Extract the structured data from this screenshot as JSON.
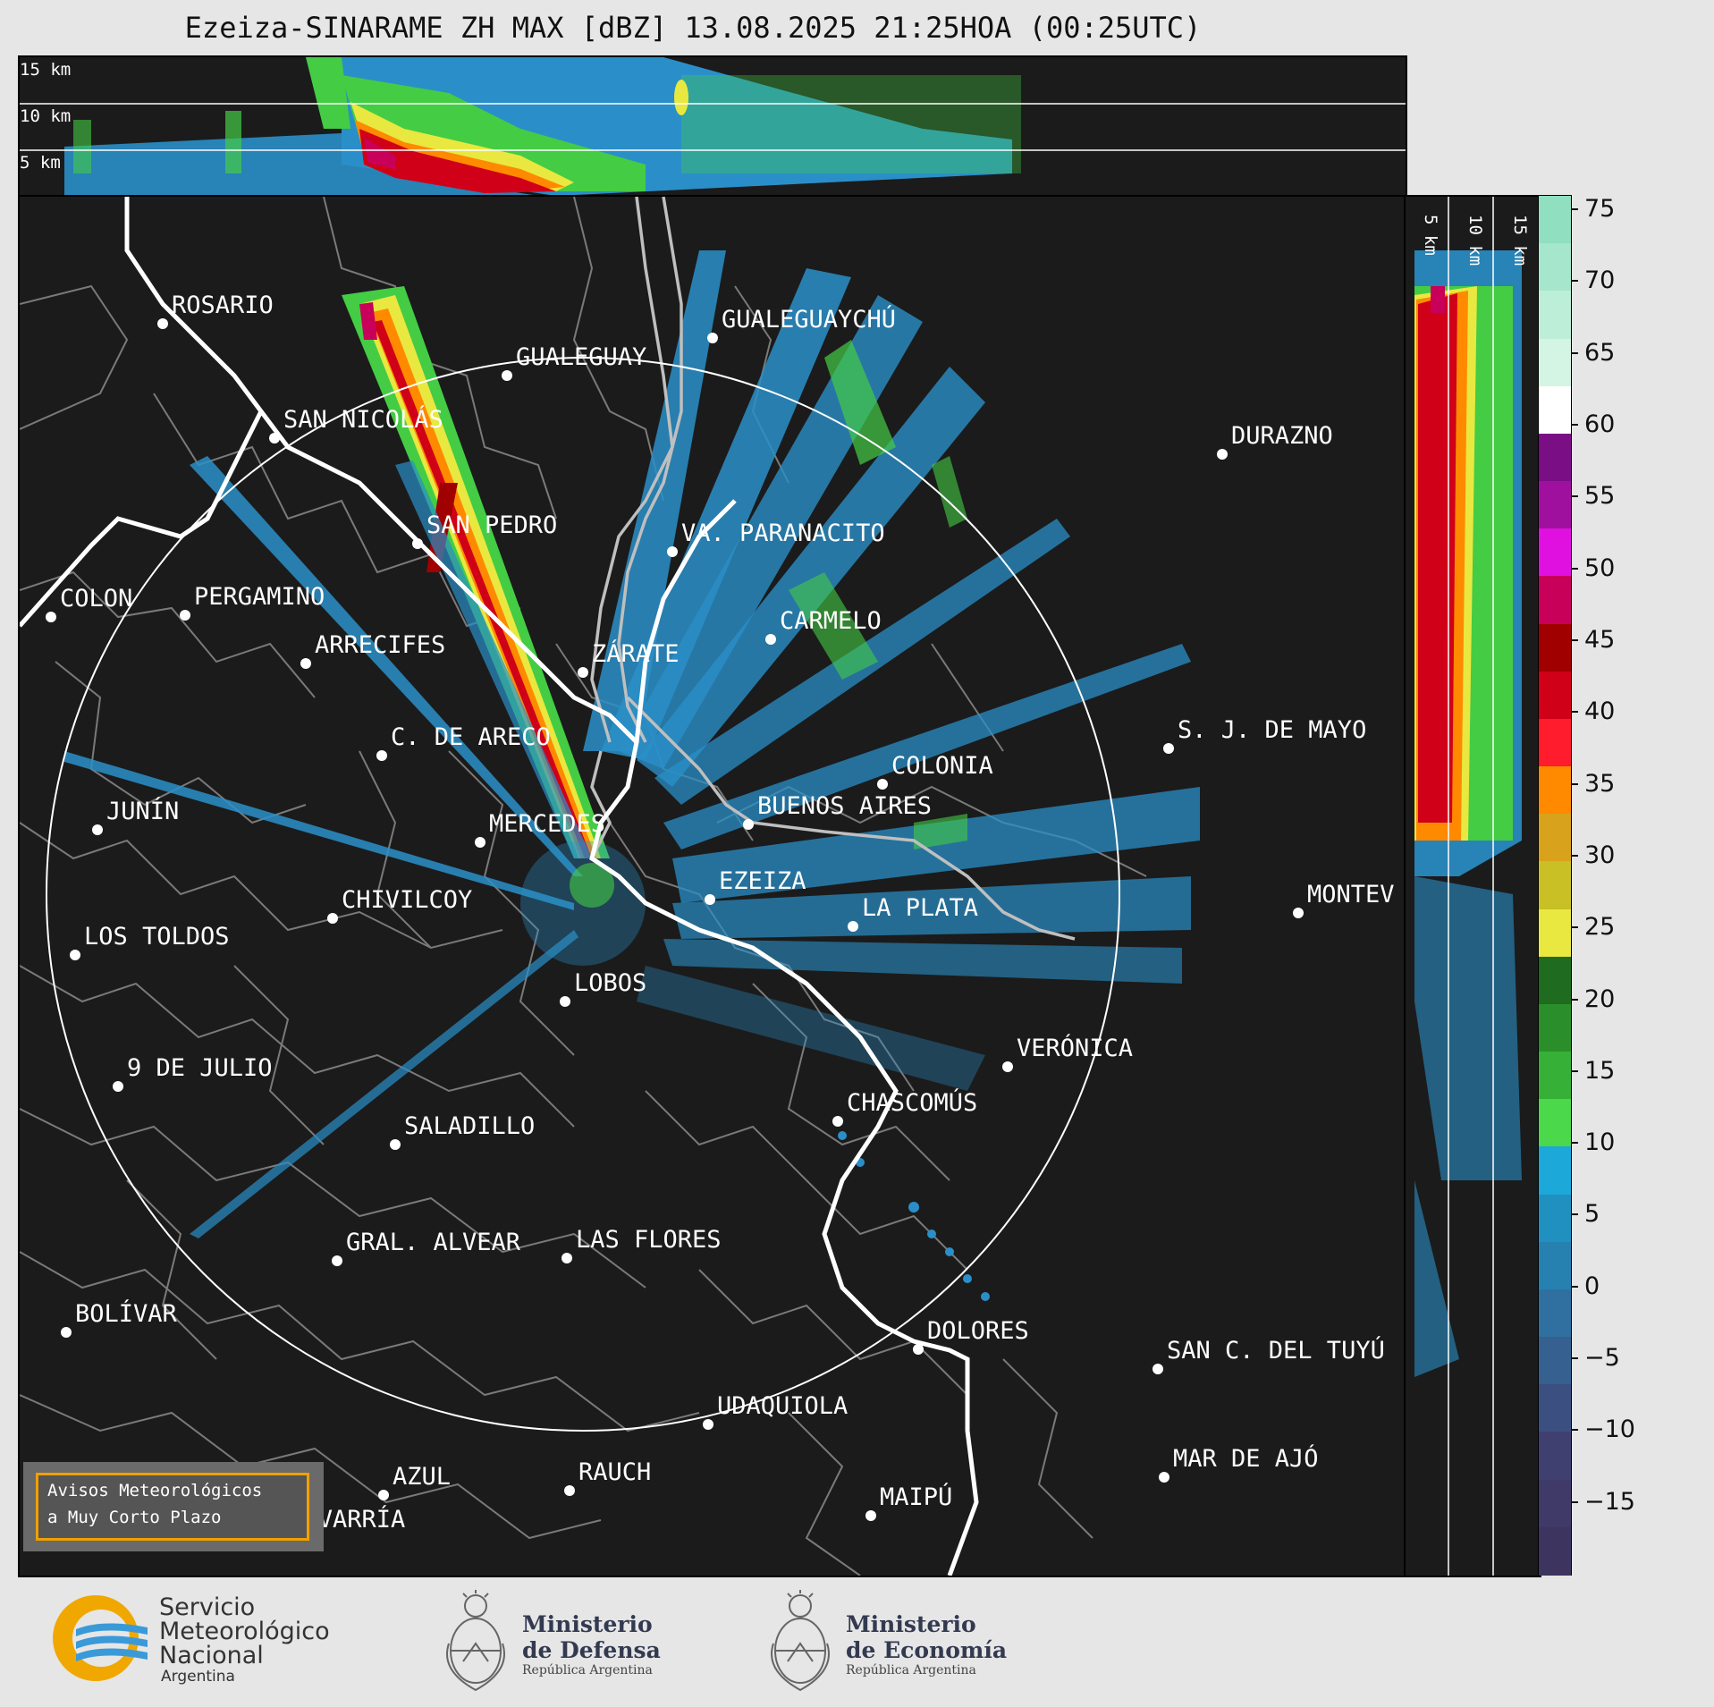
{
  "title": "Ezeiza-SINARAME ZH MAX [dBZ] 13.08.2025 21:25HOA (00:25UTC)",
  "top_strip": {
    "height_labels": [
      "15 km",
      "10 km",
      "5 km"
    ]
  },
  "side_strip": {
    "height_labels": [
      "5 km",
      "10 km",
      "15 km"
    ]
  },
  "colorbar": {
    "ticks": [
      "75",
      "70",
      "65",
      "60",
      "55",
      "50",
      "45",
      "40",
      "35",
      "30",
      "25",
      "20",
      "15",
      "10",
      "5",
      "0",
      "−5",
      "−10",
      "−15"
    ],
    "range": [
      -20,
      76
    ],
    "colors_top_to_bottom": [
      "#8fdfc0",
      "#a6e6cc",
      "#bdeed8",
      "#d4f4e4",
      "#ffffff",
      "#7a0e84",
      "#a0109f",
      "#e010e0",
      "#c8005a",
      "#a00000",
      "#d00018",
      "#ff1c2c",
      "#ff8a00",
      "#d9a21c",
      "#c8c025",
      "#e8e840",
      "#1f6b1f",
      "#2a8f2a",
      "#36b036",
      "#4bd84b",
      "#1ca8d8",
      "#2090c0",
      "#2680b0",
      "#2f70a0",
      "#356090",
      "#3b5080",
      "#404070",
      "#403a68",
      "#3d3560"
    ]
  },
  "notice": {
    "line1": "Avisos Meteorológicos",
    "line2": "a Muy Corto Plazo",
    "border_color": "#f0a000"
  },
  "cities": [
    {
      "name": "ROSARIO"
    },
    {
      "name": "GUALEGUAYCHÚ"
    },
    {
      "name": "GUALEGUAY"
    },
    {
      "name": "SAN NICOLÁS"
    },
    {
      "name": "DURAZNO"
    },
    {
      "name": "SAN PEDRO"
    },
    {
      "name": "VA. PARANACITO"
    },
    {
      "name": "COLON"
    },
    {
      "name": "PERGAMINO"
    },
    {
      "name": "CARMELO"
    },
    {
      "name": "ARRECIFES"
    },
    {
      "name": "ZÁRATE"
    },
    {
      "name": "S. J. DE MAYO"
    },
    {
      "name": "C. DE ARECO"
    },
    {
      "name": "COLONIA"
    },
    {
      "name": "JUNÍN"
    },
    {
      "name": "MERCEDES"
    },
    {
      "name": "BUENOS AIRES"
    },
    {
      "name": "EZEIZA"
    },
    {
      "name": "MONTEV"
    },
    {
      "name": "CHIVILCOY"
    },
    {
      "name": "LA PLATA"
    },
    {
      "name": "LOS TOLDOS"
    },
    {
      "name": "LOBOS"
    },
    {
      "name": "VERÓNICA"
    },
    {
      "name": "9 DE JULIO"
    },
    {
      "name": "CHASCOMÚS"
    },
    {
      "name": "SALADILLO"
    },
    {
      "name": "GRAL. ALVEAR"
    },
    {
      "name": "LAS FLORES"
    },
    {
      "name": "BOLÍVAR"
    },
    {
      "name": "DOLORES"
    },
    {
      "name": "SAN C. DEL TUYÚ"
    },
    {
      "name": "UDAQUIOLA"
    },
    {
      "name": "MAR DE AJÓ"
    },
    {
      "name": "AZUL"
    },
    {
      "name": "RAUCH"
    },
    {
      "name": "MAIPÚ"
    },
    {
      "name": "OLAVARRÍA"
    }
  ],
  "logos": {
    "smn": {
      "line1": "Servicio",
      "line2": "Meteorológico",
      "line3": "Nacional",
      "line4": "Argentina"
    },
    "defensa": {
      "line1": "Ministerio",
      "line2": "de Defensa",
      "line3": "República Argentina"
    },
    "economia": {
      "line1": "Ministerio",
      "line2": "de Economía",
      "line3": "República Argentina"
    }
  }
}
